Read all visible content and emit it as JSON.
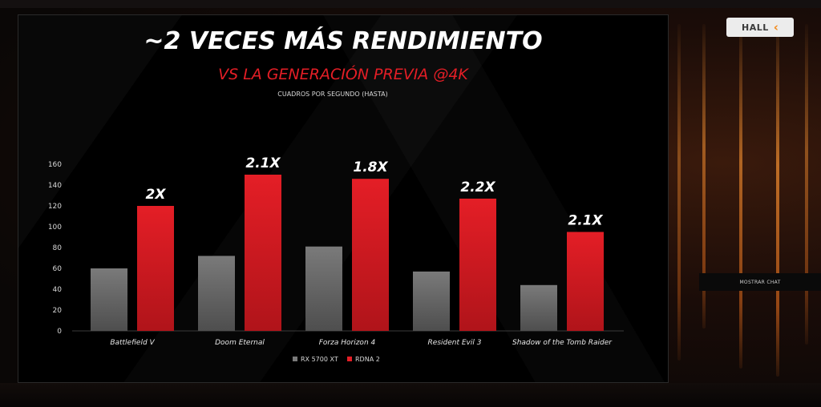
{
  "colors": {
    "series_primary": "#7a7a7a",
    "series_secondary": "#e41e26",
    "accent_orange": "#f28a1a"
  },
  "nav": {
    "hall_label": "HALL",
    "hall_icon": "chevron-left-icon"
  },
  "chat": {
    "toggle_label": "MOSTRAR CHAT"
  },
  "slide": {
    "title": "~2 VECES MÁS RENDIMIENTO",
    "subtitle": "VS  LA GENERACIÓN PREVIA @4K",
    "unit_note": "CUADROS POR SEGUNDO (HASTA)"
  },
  "chart_data": {
    "type": "bar",
    "title": "~2 VECES MÁS RENDIMIENTO",
    "subtitle": "VS  LA GENERACIÓN PREVIA @4K",
    "ylabel": "CUADROS POR SEGUNDO (HASTA)",
    "xlabel": "",
    "ylim": [
      0,
      160
    ],
    "yticks": [
      0,
      20,
      40,
      60,
      80,
      100,
      120,
      140,
      160
    ],
    "grid": false,
    "legend_position": "bottom-center",
    "categories": [
      "Battlefield V",
      "Doom Eternal",
      "Forza Horizon 4",
      "Resident Evil 3",
      "Shadow of the Tomb Raider"
    ],
    "series": [
      {
        "name": "RX 5700 XT",
        "color": "#7a7a7a",
        "values": [
          60,
          72,
          81,
          57,
          44
        ]
      },
      {
        "name": "RDNA 2",
        "color": "#e41e26",
        "values": [
          120,
          150,
          146,
          127,
          95
        ]
      }
    ],
    "annotations": [
      "2X",
      "2.1X",
      "1.8X",
      "2.2X",
      "2.1X"
    ]
  }
}
